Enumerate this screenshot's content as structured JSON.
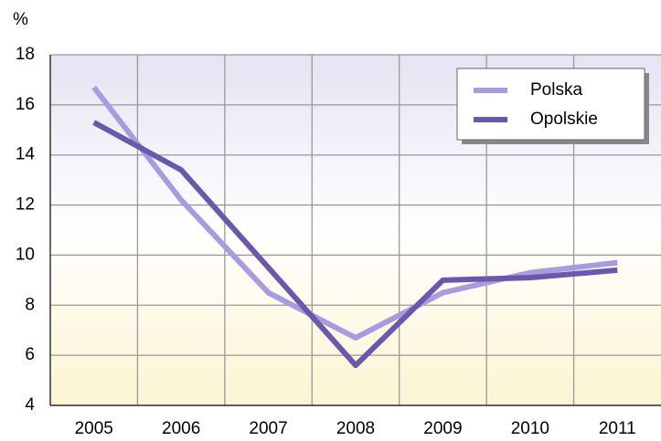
{
  "chart_data": {
    "type": "line",
    "y_label": "%",
    "categories": [
      "2005",
      "2006",
      "2007",
      "2008",
      "2009",
      "2010",
      "2011"
    ],
    "series": [
      {
        "name": "Polska",
        "color": "#a89ce0",
        "values": [
          16.7,
          12.2,
          8.5,
          6.7,
          8.5,
          9.3,
          9.7
        ]
      },
      {
        "name": "Opolskie",
        "color": "#6a58aa",
        "values": [
          15.3,
          13.4,
          9.5,
          5.6,
          9.0,
          9.1,
          9.4
        ]
      }
    ],
    "ylim": [
      4,
      18
    ],
    "yticks": [
      4,
      6,
      8,
      10,
      12,
      14,
      16,
      18
    ],
    "grid": true,
    "legend": "upper right"
  }
}
